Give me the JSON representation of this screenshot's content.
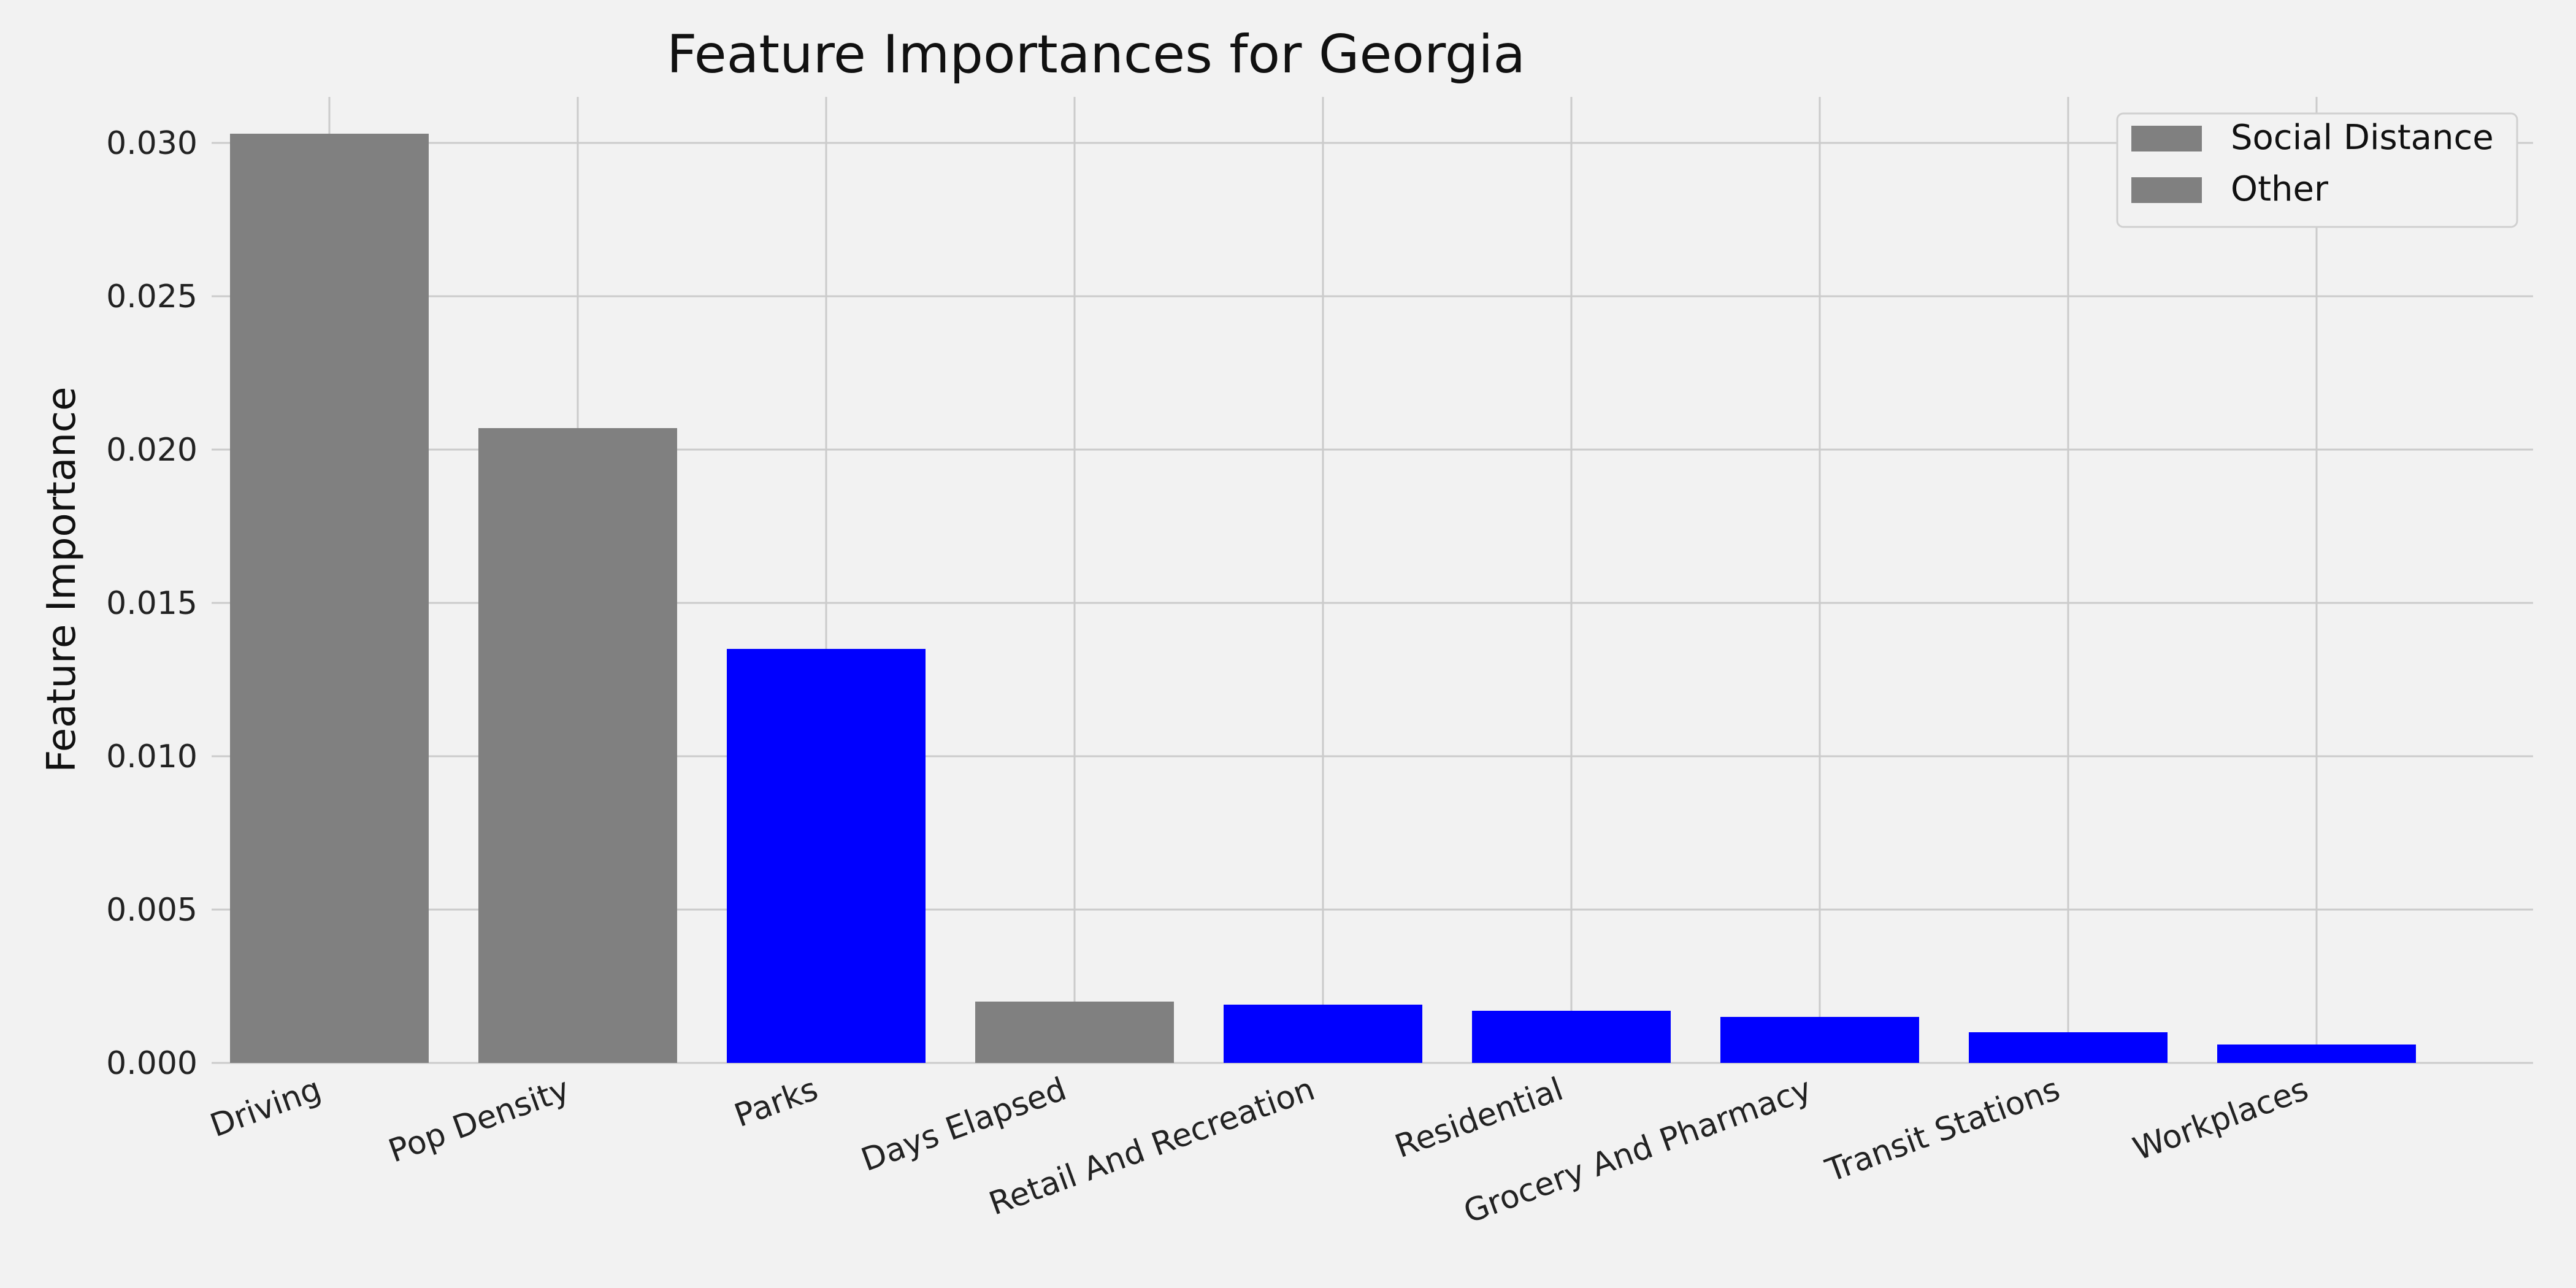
{
  "chart_data": {
    "type": "bar",
    "title": "Feature Importances for Georgia",
    "xlabel": "",
    "ylabel": "Feature Importance",
    "categories": [
      "Driving",
      "Pop Density",
      "Parks",
      "Days Elapsed",
      "Retail And Recreation",
      "Residential",
      "Grocery And Pharmacy",
      "Transit Stations",
      "Workplaces"
    ],
    "values": [
      0.0303,
      0.0207,
      0.0135,
      0.002,
      0.0019,
      0.0017,
      0.0015,
      0.001,
      0.0006
    ],
    "bar_colors": [
      "#808080",
      "#808080",
      "#0000ff",
      "#808080",
      "#0000ff",
      "#0000ff",
      "#0000ff",
      "#0000ff",
      "#0000ff"
    ],
    "ylim": [
      0,
      0.0315
    ],
    "yticks": [
      "0.000",
      "0.005",
      "0.010",
      "0.015",
      "0.020",
      "0.025",
      "0.030"
    ],
    "ytick_values": [
      0,
      0.005,
      0.01,
      0.015,
      0.02,
      0.025,
      0.03
    ],
    "grid": true,
    "legend": {
      "placement": "top-right",
      "entries": [
        {
          "label": "Social Distance",
          "color": "#808080"
        },
        {
          "label": "Other",
          "color": "#808080"
        }
      ]
    }
  }
}
